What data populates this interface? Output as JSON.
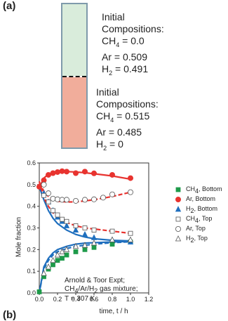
{
  "panel_a": {
    "label": "(a)",
    "top": {
      "heading": "Initial Compositions:",
      "lines": [
        {
          "species": "CH",
          "sub": "4",
          "value": " = 0.0"
        },
        {
          "species": "Ar",
          "sub": "",
          "value": " = 0.509"
        },
        {
          "species": "H",
          "sub": "2",
          "value": " = 0.491"
        }
      ],
      "color": "#d9ecdb"
    },
    "bottom": {
      "heading": "Initial Compositions:",
      "lines": [
        {
          "species": "CH",
          "sub": "4",
          "value": " = 0.515"
        },
        {
          "species": "Ar",
          "sub": "",
          "value": " = 0.485"
        },
        {
          "species": "H",
          "sub": "2",
          "value": " = 0"
        }
      ],
      "color": "#f1ad9b"
    }
  },
  "panel_b_label": "(b)",
  "colors": {
    "red": "#e8332f",
    "blue": "#1f6fbe",
    "green": "#1e9a4a",
    "open": "#444444"
  },
  "chart_data": {
    "type": "scatter",
    "xlabel": "time, t / h",
    "ylabel": "Mole fraction",
    "xlim": [
      0.0,
      1.2
    ],
    "ylim": [
      0.0,
      0.6
    ],
    "xticks": [
      "0.0",
      "0.2",
      "0.4",
      "0.6",
      "0.8",
      "1.0",
      "1.2"
    ],
    "yticks": [
      "0.0",
      "0.1",
      "0.2",
      "0.3",
      "0.4",
      "0.5",
      "0.6"
    ],
    "grid": false,
    "legend": "right",
    "annotation": {
      "line1": "Arnold & Toor Expt;",
      "line2_species": [
        "CH",
        "4",
        "/Ar/H",
        "2",
        " gas mixture;"
      ],
      "line3": "T = 307 K"
    },
    "series": [
      {
        "name": "CH4, Bottom",
        "label_main": "CH",
        "label_sub": "4",
        "label_tail": ", Bottom",
        "marker": "square",
        "filled": true,
        "color": "#1e9a4a",
        "x": [
          0.0,
          0.05,
          0.1,
          0.15,
          0.2,
          0.25,
          0.3,
          0.4,
          0.5,
          0.6,
          0.8,
          1.0
        ],
        "y": [
          0.005,
          0.075,
          0.11,
          0.13,
          0.15,
          0.16,
          0.175,
          0.19,
          0.2,
          0.21,
          0.225,
          0.235
        ]
      },
      {
        "name": "Ar, Bottom",
        "label_main": "Ar",
        "label_sub": "",
        "label_tail": ", Bottom",
        "marker": "circle",
        "filled": true,
        "color": "#e8332f",
        "x": [
          0.0,
          0.05,
          0.1,
          0.15,
          0.2,
          0.25,
          0.3,
          0.4,
          0.5,
          0.6,
          0.8,
          1.0
        ],
        "y": [
          0.49,
          0.52,
          0.545,
          0.553,
          0.558,
          0.562,
          0.56,
          0.553,
          0.56,
          0.552,
          0.545,
          0.53
        ]
      },
      {
        "name": "H2, Bottom",
        "label_main": "H",
        "label_sub": "2",
        "label_tail": ", Bottom",
        "marker": "triangle",
        "filled": true,
        "color": "#1f6fbe",
        "x": [
          0.05,
          0.1,
          0.15,
          0.2,
          0.25,
          0.3,
          0.4,
          0.5,
          0.6,
          0.8,
          1.0
        ],
        "y": [
          0.46,
          0.42,
          0.38,
          0.35,
          0.33,
          0.31,
          0.29,
          0.27,
          0.255,
          0.245,
          0.235
        ]
      },
      {
        "name": "CH4, Top",
        "label_main": "CH",
        "label_sub": "4",
        "label_tail": ", Top",
        "marker": "square",
        "filled": false,
        "color": "#444444",
        "x": [
          0.05,
          0.1,
          0.15,
          0.2,
          0.25,
          0.3,
          0.4,
          0.5,
          0.6,
          0.8,
          1.0
        ],
        "y": [
          0.45,
          0.42,
          0.38,
          0.36,
          0.34,
          0.33,
          0.31,
          0.3,
          0.29,
          0.285,
          0.275
        ]
      },
      {
        "name": "Ar, Top",
        "label_main": "Ar",
        "label_sub": "",
        "label_tail": ", Top",
        "marker": "circle",
        "filled": false,
        "color": "#444444",
        "x": [
          0.05,
          0.1,
          0.15,
          0.2,
          0.25,
          0.3,
          0.4,
          0.5,
          0.6,
          0.7,
          0.8,
          1.0
        ],
        "y": [
          0.5,
          0.46,
          0.435,
          0.432,
          0.43,
          0.43,
          0.425,
          0.43,
          0.432,
          0.44,
          0.455,
          0.465
        ]
      },
      {
        "name": "H2, Top",
        "label_main": "H",
        "label_sub": "2",
        "label_tail": ", Top",
        "marker": "triangle",
        "filled": false,
        "color": "#444444",
        "x": [
          0.05,
          0.1,
          0.15,
          0.2,
          0.25,
          0.3,
          0.4,
          0.5,
          0.6,
          0.8,
          1.0
        ],
        "y": [
          0.09,
          0.12,
          0.15,
          0.175,
          0.19,
          0.2,
          0.215,
          0.22,
          0.23,
          0.245,
          0.245
        ]
      }
    ],
    "curves": [
      {
        "color": "#e8332f",
        "dashed": false,
        "x": [
          0.0,
          0.05,
          0.1,
          0.15,
          0.2,
          0.3,
          0.4,
          0.5,
          0.6,
          0.8,
          1.0
        ],
        "y": [
          0.485,
          0.53,
          0.548,
          0.555,
          0.558,
          0.56,
          0.558,
          0.555,
          0.55,
          0.54,
          0.525
        ]
      },
      {
        "color": "#e8332f",
        "dashed": true,
        "x": [
          0.0,
          0.05,
          0.1,
          0.15,
          0.2,
          0.3,
          0.4,
          0.5,
          0.6,
          0.8,
          1.0
        ],
        "y": [
          0.509,
          0.47,
          0.445,
          0.43,
          0.423,
          0.42,
          0.42,
          0.425,
          0.43,
          0.445,
          0.465
        ]
      },
      {
        "color": "#1f6fbe",
        "dashed": false,
        "x": [
          0.0,
          0.05,
          0.1,
          0.15,
          0.2,
          0.3,
          0.4,
          0.5,
          0.6,
          0.8,
          1.0
        ],
        "y": [
          0.0,
          0.12,
          0.16,
          0.185,
          0.2,
          0.215,
          0.225,
          0.23,
          0.232,
          0.235,
          0.238
        ]
      },
      {
        "color": "#1f6fbe",
        "dashed": true,
        "x": [
          0.0,
          0.05,
          0.1,
          0.15,
          0.2,
          0.3,
          0.4,
          0.5,
          0.6,
          0.8,
          1.0
        ],
        "y": [
          0.0,
          0.11,
          0.15,
          0.175,
          0.19,
          0.205,
          0.215,
          0.22,
          0.225,
          0.232,
          0.236
        ]
      },
      {
        "color": "#1f6fbe",
        "dashed": false,
        "x": [
          0.0,
          0.05,
          0.1,
          0.15,
          0.2,
          0.3,
          0.4,
          0.5,
          0.6,
          0.8,
          1.0
        ],
        "y": [
          0.491,
          0.43,
          0.38,
          0.345,
          0.32,
          0.29,
          0.27,
          0.258,
          0.25,
          0.243,
          0.24
        ]
      },
      {
        "color": "#e8332f",
        "dashed": true,
        "x": [
          0.0,
          0.05,
          0.1,
          0.15,
          0.2,
          0.3,
          0.4,
          0.5,
          0.6,
          0.8,
          1.0
        ],
        "y": [
          0.515,
          0.44,
          0.4,
          0.37,
          0.35,
          0.325,
          0.31,
          0.3,
          0.295,
          0.285,
          0.275
        ]
      }
    ]
  }
}
